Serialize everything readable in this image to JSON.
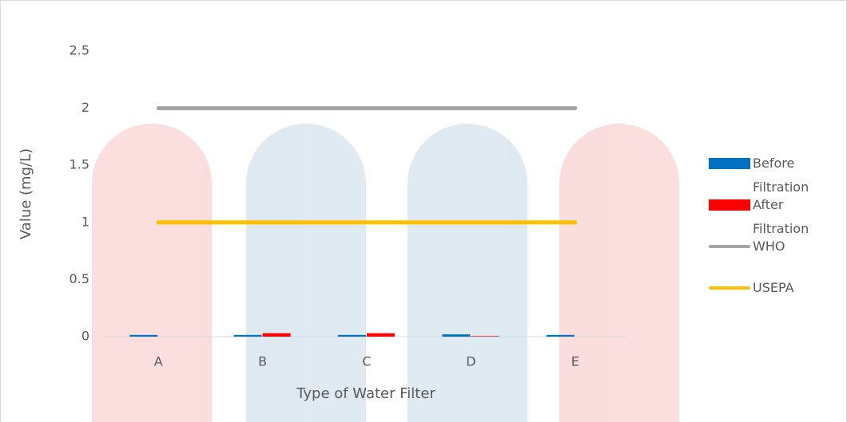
{
  "chart_data": {
    "type": "bar",
    "x_label": "Type of Water Filter",
    "y_label": "Value (mg/L)",
    "categories": [
      "A",
      "B",
      "C",
      "D",
      "E"
    ],
    "series": [
      {
        "name": "Before Filtration",
        "type": "bar",
        "color": "#0070c0",
        "values": [
          0.015,
          0.015,
          0.015,
          0.02,
          0.015
        ]
      },
      {
        "name": "After Filtration",
        "type": "bar",
        "color": "#ff0000",
        "values": [
          0,
          0.03,
          0.03,
          0.005,
          0
        ]
      },
      {
        "name": "WHO",
        "type": "line",
        "color": "#a5a5a5",
        "values": [
          2,
          2,
          2,
          2,
          2
        ]
      },
      {
        "name": "USEPA",
        "type": "line",
        "color": "#ffc000",
        "values": [
          1,
          1,
          1,
          1,
          1
        ]
      }
    ],
    "ylim": [
      0,
      2.5
    ],
    "yticks": [
      0,
      0.5,
      1,
      1.5,
      2,
      2.5
    ],
    "grid": false,
    "legend": "right"
  }
}
